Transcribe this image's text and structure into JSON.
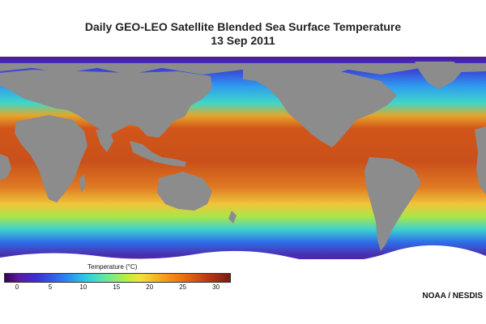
{
  "title": {
    "line1": "Daily GEO-LEO Satellite Blended Sea Surface Temperature",
    "line2": "13 Sep 2011"
  },
  "legend": {
    "title": "Temperature (°C)",
    "ticks": [
      "0",
      "5",
      "10",
      "15",
      "20",
      "25",
      "30"
    ],
    "range": [
      0,
      32
    ]
  },
  "credit": "NOAA / NESDIS",
  "colors": {
    "land": "#8c8c8c",
    "ice": "#ffffff",
    "warm": "#d2561a",
    "cold": "#4a1a9a"
  }
}
